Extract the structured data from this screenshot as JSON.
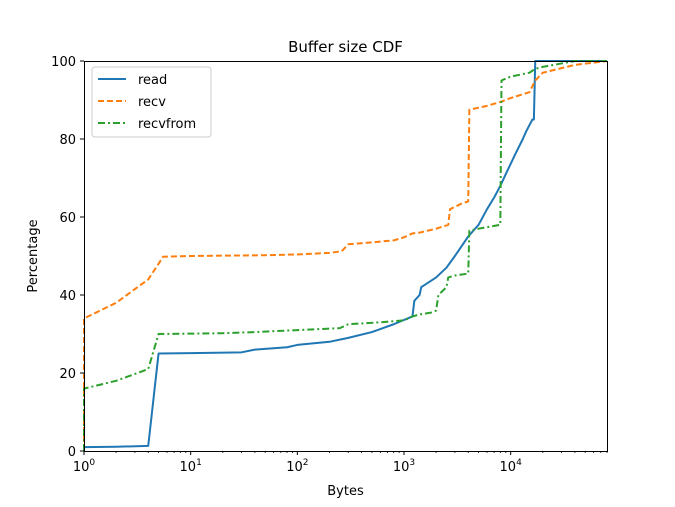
{
  "chart_data": {
    "type": "line",
    "title": "Buffer size CDF",
    "xlabel": "Bytes",
    "ylabel": "Percentage",
    "xscale": "log",
    "xlim": [
      1,
      80000
    ],
    "ylim": [
      0,
      100
    ],
    "grid": false,
    "legend_position": "upper-left",
    "x_ticks": [
      {
        "value": 1,
        "base": "10",
        "exp": "0"
      },
      {
        "value": 10,
        "base": "10",
        "exp": "1"
      },
      {
        "value": 100,
        "base": "10",
        "exp": "2"
      },
      {
        "value": 1000,
        "base": "10",
        "exp": "3"
      },
      {
        "value": 10000,
        "base": "10",
        "exp": "4"
      }
    ],
    "y_ticks": [
      0,
      20,
      40,
      60,
      80,
      100
    ],
    "series": [
      {
        "name": "read",
        "color": "#1f77b4",
        "style": "solid",
        "points": [
          [
            1,
            1
          ],
          [
            2,
            1.1
          ],
          [
            4,
            1.3
          ],
          [
            5,
            25
          ],
          [
            10,
            25.1
          ],
          [
            30,
            25.3
          ],
          [
            40,
            26
          ],
          [
            80,
            26.6
          ],
          [
            100,
            27.2
          ],
          [
            200,
            28
          ],
          [
            300,
            29
          ],
          [
            500,
            30.5
          ],
          [
            800,
            32.5
          ],
          [
            1200,
            34.5
          ],
          [
            1250,
            38.5
          ],
          [
            1400,
            40
          ],
          [
            1450,
            42
          ],
          [
            2000,
            44.5
          ],
          [
            2500,
            47
          ],
          [
            3000,
            50
          ],
          [
            4000,
            55
          ],
          [
            5000,
            58
          ],
          [
            6000,
            62
          ],
          [
            7000,
            65
          ],
          [
            8000,
            68
          ],
          [
            9000,
            71
          ],
          [
            11000,
            76
          ],
          [
            13000,
            80
          ],
          [
            14000,
            82
          ],
          [
            16000,
            85
          ],
          [
            16500,
            85
          ],
          [
            17000,
            100
          ],
          [
            80000,
            100
          ]
        ]
      },
      {
        "name": "recv",
        "color": "#ff7f0e",
        "style": "dashed",
        "points": [
          [
            1,
            0
          ],
          [
            1,
            34
          ],
          [
            2,
            38
          ],
          [
            4,
            44
          ],
          [
            5,
            48
          ],
          [
            5.5,
            49.8
          ],
          [
            10,
            50
          ],
          [
            50,
            50.2
          ],
          [
            100,
            50.4
          ],
          [
            200,
            50.8
          ],
          [
            260,
            51.2
          ],
          [
            300,
            53
          ],
          [
            500,
            53.5
          ],
          [
            800,
            54
          ],
          [
            1000,
            54.8
          ],
          [
            1200,
            55.8
          ],
          [
            1400,
            56
          ],
          [
            2000,
            57
          ],
          [
            2600,
            58
          ],
          [
            2700,
            62
          ],
          [
            3500,
            63.5
          ],
          [
            4000,
            64
          ],
          [
            4100,
            87.5
          ],
          [
            6000,
            88.5
          ],
          [
            8000,
            89.5
          ],
          [
            10000,
            90.5
          ],
          [
            15000,
            92
          ],
          [
            17000,
            95
          ],
          [
            20000,
            97
          ],
          [
            40000,
            99
          ],
          [
            80000,
            100
          ]
        ]
      },
      {
        "name": "recvfrom",
        "color": "#2ca02c",
        "style": "dashdot",
        "points": [
          [
            1,
            0
          ],
          [
            1,
            16
          ],
          [
            2,
            18
          ],
          [
            4,
            21
          ],
          [
            5,
            30
          ],
          [
            20,
            30.2
          ],
          [
            40,
            30.5
          ],
          [
            100,
            31
          ],
          [
            250,
            31.5
          ],
          [
            300,
            32.5
          ],
          [
            600,
            33
          ],
          [
            1000,
            33.5
          ],
          [
            1200,
            34.5
          ],
          [
            1400,
            35
          ],
          [
            1800,
            35.5
          ],
          [
            2000,
            36
          ],
          [
            2100,
            40
          ],
          [
            2500,
            42
          ],
          [
            2600,
            44.5
          ],
          [
            3000,
            45
          ],
          [
            4000,
            45.5
          ],
          [
            4100,
            56.5
          ],
          [
            5000,
            57
          ],
          [
            8000,
            58
          ],
          [
            8200,
            95
          ],
          [
            9000,
            95.5
          ],
          [
            10000,
            96
          ],
          [
            15000,
            97
          ],
          [
            17000,
            98
          ],
          [
            20000,
            98.5
          ],
          [
            40000,
            100
          ],
          [
            80000,
            100
          ]
        ]
      }
    ]
  }
}
